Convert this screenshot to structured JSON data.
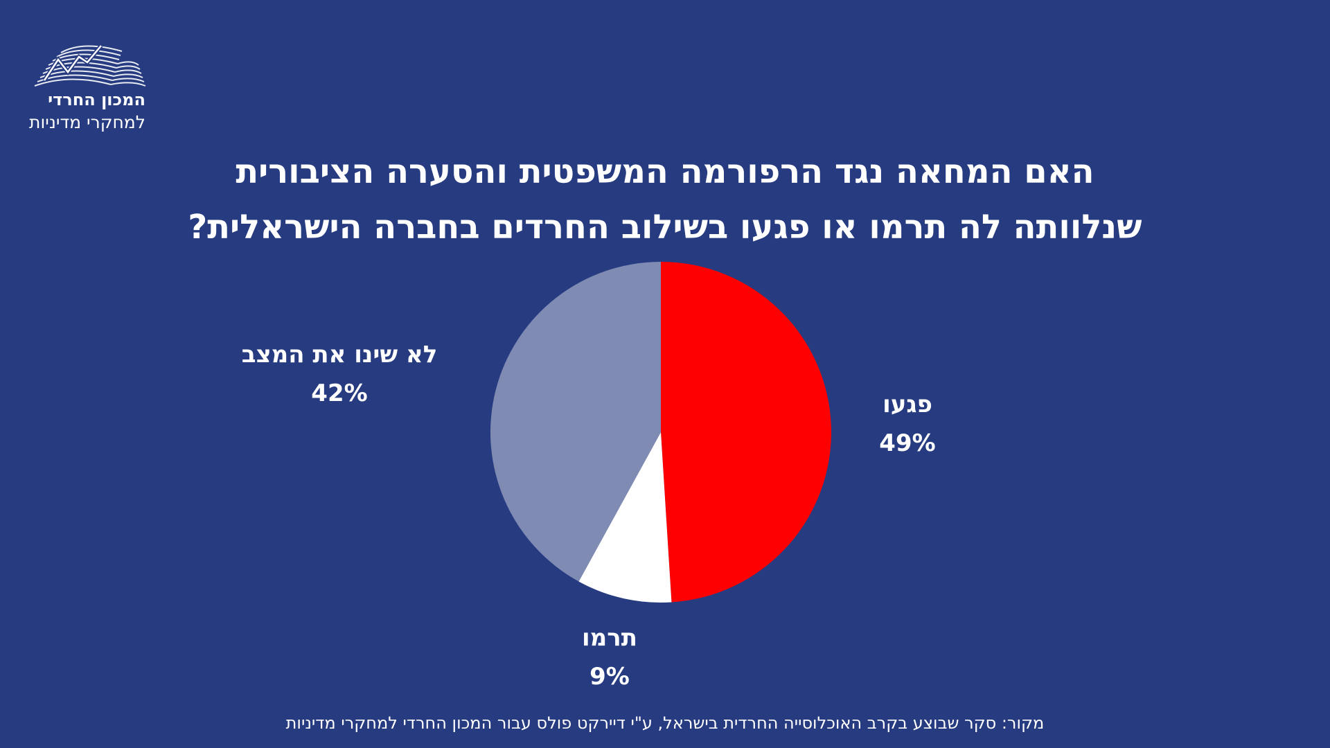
{
  "logo": {
    "line1": "המכון החרדי",
    "line2": "למחקרי מדיניות",
    "icon": "open-book-graph-icon"
  },
  "title": {
    "line1": "האם המחאה נגד הרפורמה המשפטית והסערה הציבורית",
    "line2": "שנלוותה לה תרמו או פגעו בשילוב החרדים בחברה הישראלית?"
  },
  "chart_data": {
    "type": "pie",
    "start": "12 o'clock, clockwise",
    "slices": [
      {
        "label": "פגעו",
        "value": 49,
        "display": "49%",
        "color": "#ff0000"
      },
      {
        "label": "תרמו",
        "value": 9,
        "display": "9%",
        "color": "#ffffff"
      },
      {
        "label": "לא שינו את המצב",
        "value": 42,
        "display": "42%",
        "color": "#7f8bb3"
      }
    ]
  },
  "source": "מקור: סקר שבוצע בקרב האוכלוסייה החרדית בישראל,  ע\"י דיירקט פולס עבור המכון החרדי למחקרי מדיניות",
  "colors": {
    "background": "#263b80",
    "text": "#ffffff"
  }
}
